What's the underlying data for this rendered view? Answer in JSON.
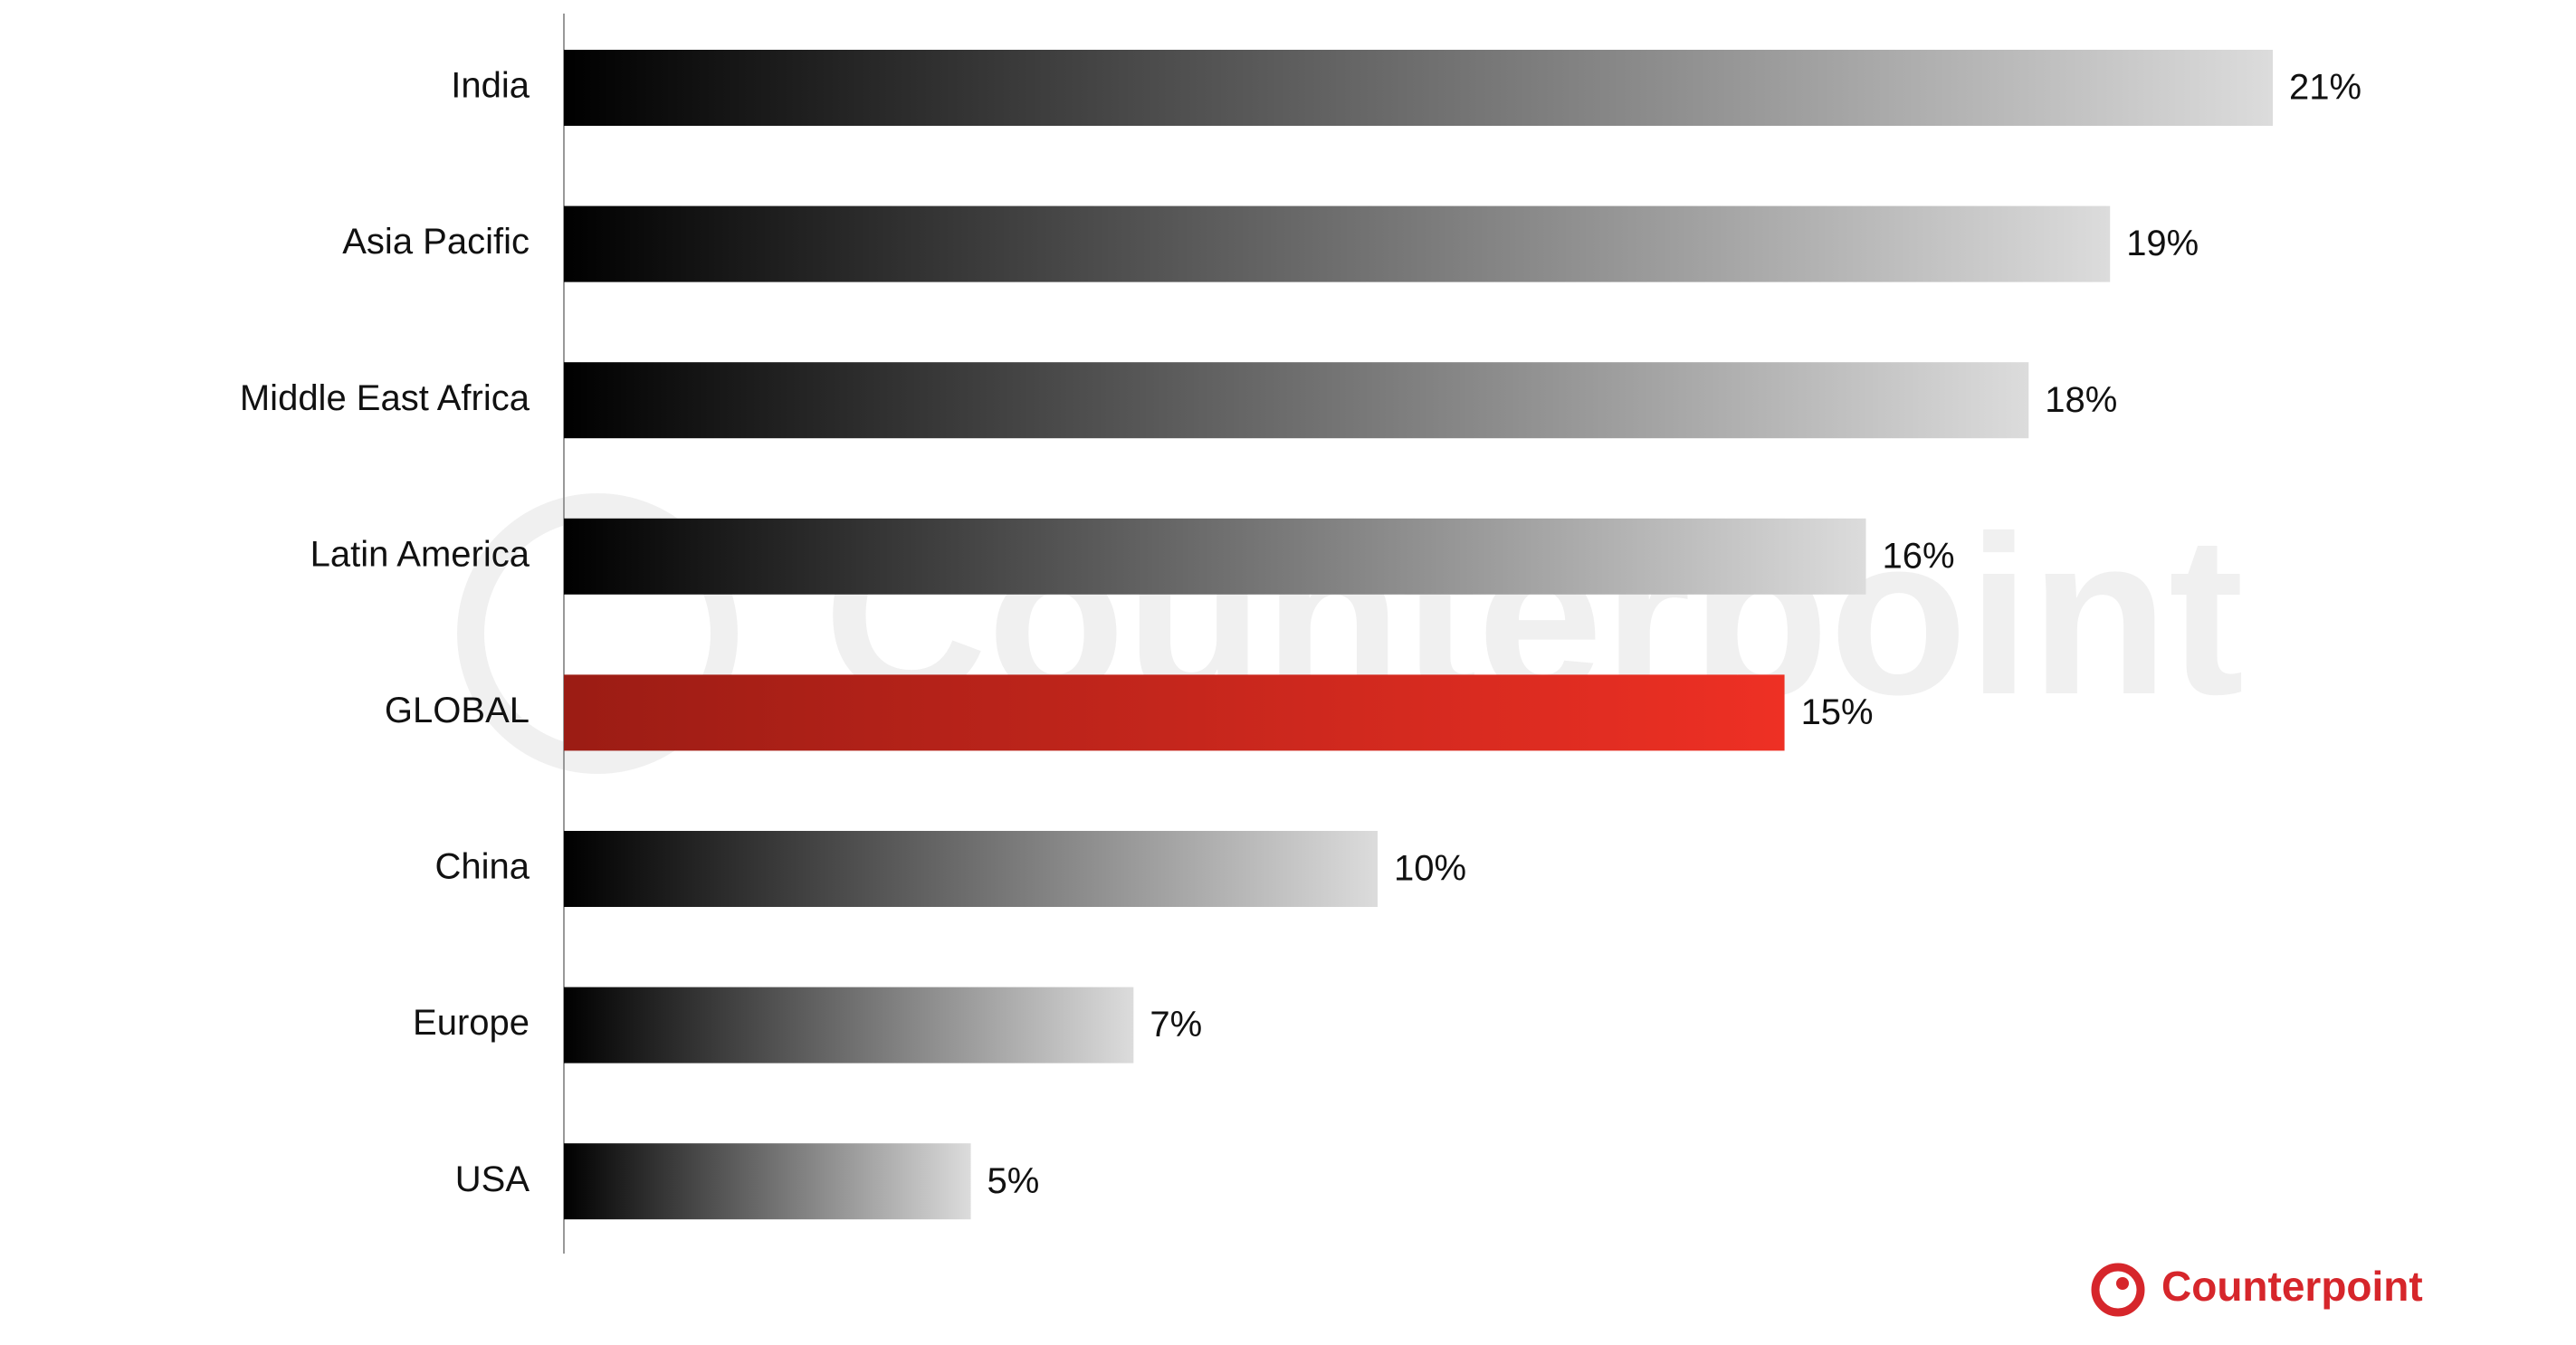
{
  "chart_data": {
    "type": "bar",
    "orientation": "horizontal",
    "categories": [
      "India",
      "Asia Pacific",
      "Middle East Africa",
      "Latin America",
      "GLOBAL",
      "China",
      "Europe",
      "USA"
    ],
    "values": [
      21,
      19,
      18,
      16,
      15,
      10,
      7,
      5
    ],
    "value_labels": [
      "21%",
      "19%",
      "18%",
      "16%",
      "15%",
      "10%",
      "7%",
      "5%"
    ],
    "colors": [
      [
        "#000000",
        "#dcdcdc"
      ],
      [
        "#000000",
        "#dcdcdc"
      ],
      [
        "#000000",
        "#dcdcdc"
      ],
      [
        "#000000",
        "#dcdcdc"
      ],
      [
        "#9b1c14",
        "#ee3024"
      ],
      [
        "#000000",
        "#dcdcdc"
      ],
      [
        "#000000",
        "#dcdcdc"
      ],
      [
        "#000000",
        "#dcdcdc"
      ]
    ],
    "brand": "Counterpoint"
  }
}
